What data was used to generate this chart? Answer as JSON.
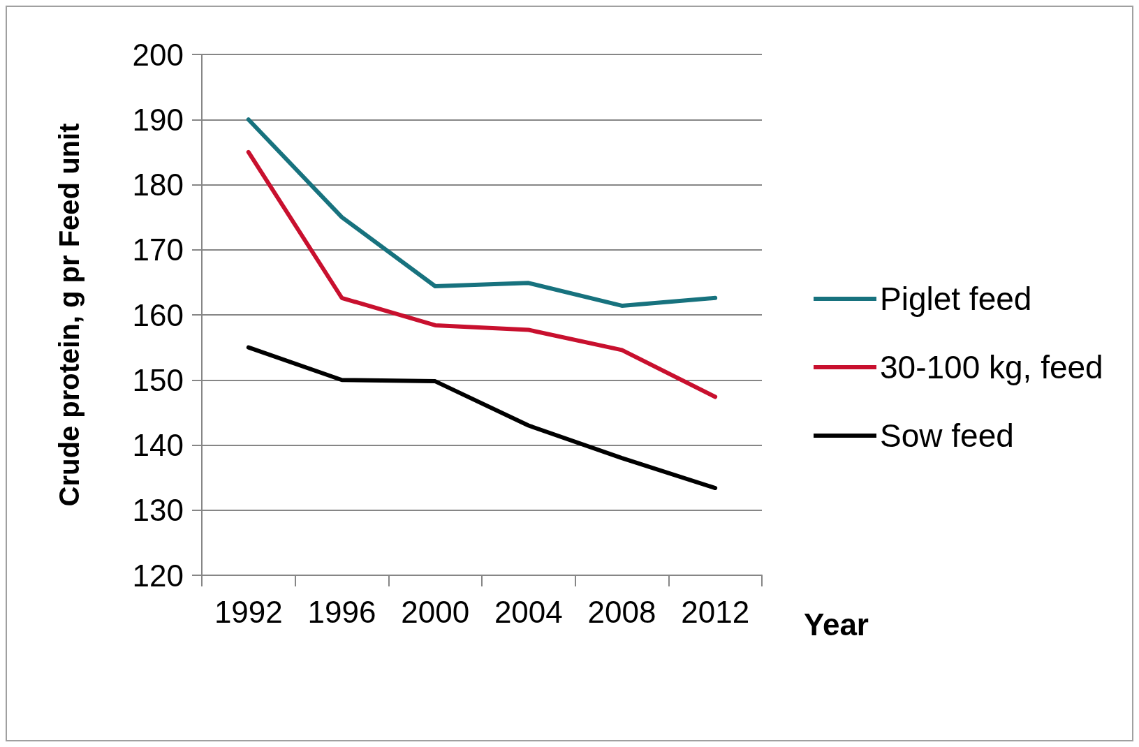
{
  "chart_data": {
    "type": "line",
    "xlabel": "Year",
    "ylabel": "Crude protein, g pr Feed unit",
    "categories": [
      "1992",
      "1996",
      "2000",
      "2004",
      "2008",
      "2012"
    ],
    "series": [
      {
        "name": "Piglet feed",
        "color": "#17727e",
        "values": [
          190,
          175,
          164.4,
          164.9,
          161.4,
          162.6
        ]
      },
      {
        "name": "30-100 kg, feed",
        "color": "#c8102e",
        "values": [
          185,
          162.6,
          158.4,
          157.7,
          154.6,
          147.4
        ]
      },
      {
        "name": "Sow feed",
        "color": "#000000",
        "values": [
          155,
          150,
          149.8,
          143,
          138,
          133.4
        ]
      }
    ],
    "ylim": [
      120,
      200
    ],
    "yticks": [
      120,
      130,
      140,
      150,
      160,
      170,
      180,
      190,
      200
    ],
    "grid": "y",
    "legend": "right",
    "marker": "none",
    "line_style": "solid"
  }
}
